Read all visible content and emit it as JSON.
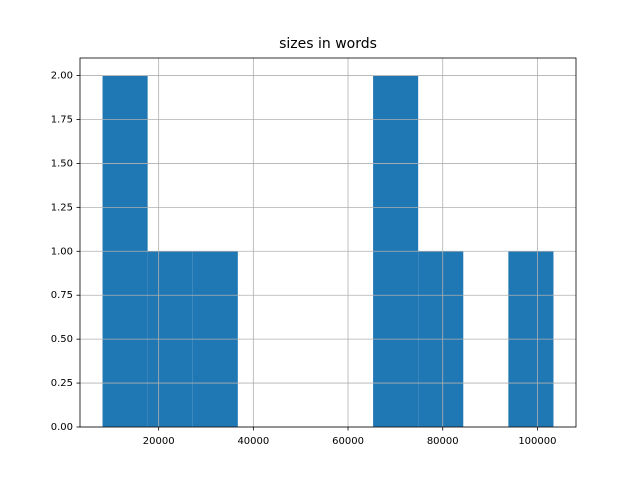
{
  "chart_data": {
    "type": "histogram",
    "title": "sizes in words",
    "bins": [
      8148,
      17672,
      27196,
      36720,
      46244,
      55768,
      65292,
      74816,
      84340,
      93864,
      103388
    ],
    "values": [
      2,
      1,
      1,
      0,
      0,
      0,
      2,
      1,
      0,
      1
    ],
    "color": "#1f77b4",
    "xlim": [
      3386,
      108150
    ],
    "xticks": [
      20000,
      40000,
      60000,
      80000,
      100000
    ],
    "ylim": [
      0,
      2.1
    ],
    "yticks": [
      {
        "value": 0,
        "label": "0.00"
      },
      {
        "value": 0.25,
        "label": "0.25"
      },
      {
        "value": 0.5,
        "label": "0.50"
      },
      {
        "value": 0.75,
        "label": "0.75"
      },
      {
        "value": 1,
        "label": "1.00"
      },
      {
        "value": 1.25,
        "label": "1.25"
      },
      {
        "value": 1.5,
        "label": "1.50"
      },
      {
        "value": 1.75,
        "label": "1.75"
      },
      {
        "value": 2,
        "label": "2.00"
      }
    ],
    "grid": true
  }
}
